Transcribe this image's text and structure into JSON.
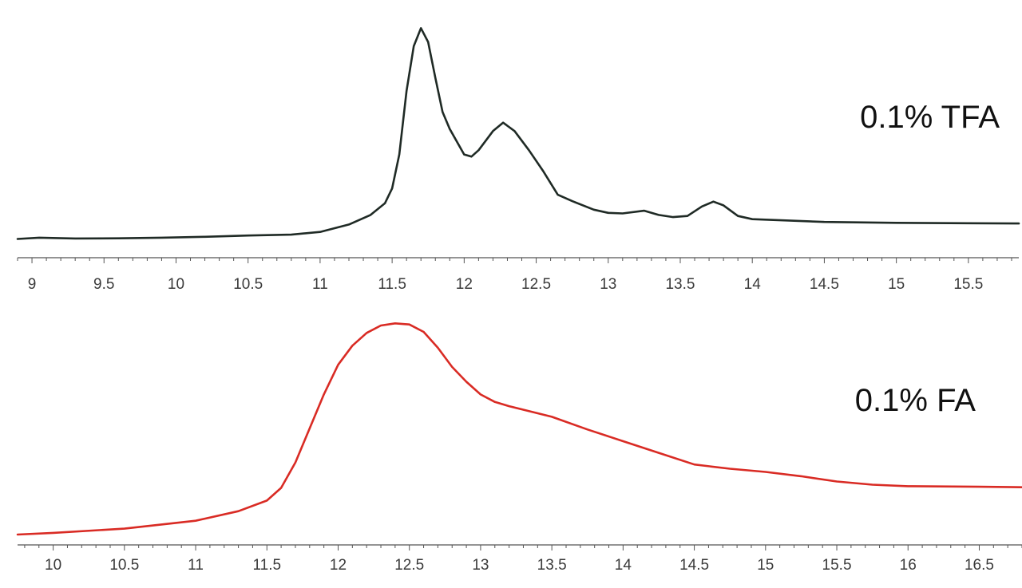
{
  "chart_data": [
    {
      "type": "line",
      "xlim": [
        8.9,
        15.85
      ],
      "ylim": [
        0,
        100
      ],
      "grid": false,
      "tick_labels": [
        "9",
        "9.5",
        "10",
        "10.5",
        "11",
        "11.5",
        "12",
        "12.5",
        "13",
        "13.5",
        "14",
        "14.5",
        "15",
        "15.5"
      ],
      "series": [
        {
          "name": "0.1% TFA",
          "color": "#1f2a25",
          "x": [
            8.9,
            9.05,
            9.3,
            9.6,
            9.9,
            10.2,
            10.5,
            10.8,
            11.0,
            11.2,
            11.35,
            11.45,
            11.5,
            11.55,
            11.6,
            11.65,
            11.7,
            11.75,
            11.8,
            11.85,
            11.9,
            12.0,
            12.05,
            12.1,
            12.2,
            12.27,
            12.35,
            12.45,
            12.55,
            12.65,
            12.75,
            12.9,
            13.0,
            13.1,
            13.25,
            13.35,
            13.45,
            13.55,
            13.65,
            13.73,
            13.8,
            13.9,
            14.0,
            14.2,
            14.5,
            15.0,
            15.5,
            15.85
          ],
          "y": [
            0.2,
            0.8,
            0.4,
            0.5,
            0.8,
            1.2,
            1.8,
            2.2,
            3.5,
            7.0,
            11.5,
            17.0,
            24.0,
            40.0,
            70.0,
            91.0,
            99.5,
            93.0,
            76.0,
            60.0,
            52.0,
            40.0,
            39.0,
            42.0,
            51.0,
            55.0,
            51.0,
            42.0,
            32.0,
            21.0,
            18.0,
            14.0,
            12.5,
            12.2,
            13.5,
            11.5,
            10.5,
            11.0,
            15.5,
            17.8,
            16.0,
            11.0,
            9.5,
            9.0,
            8.2,
            7.8,
            7.6,
            7.5
          ]
        }
      ]
    },
    {
      "type": "line",
      "xlim": [
        9.75,
        16.8
      ],
      "ylim": [
        0,
        100
      ],
      "grid": false,
      "tick_labels": [
        "10",
        "10.5",
        "11",
        "11.5",
        "12",
        "12.5",
        "13",
        "13.5",
        "14",
        "14.5",
        "15",
        "15.5",
        "16",
        "16.5"
      ],
      "series": [
        {
          "name": "0.1% FA",
          "color": "#d92b24",
          "x": [
            9.75,
            10.0,
            10.5,
            11.0,
            11.3,
            11.5,
            11.6,
            11.7,
            11.8,
            11.9,
            12.0,
            12.1,
            12.2,
            12.3,
            12.4,
            12.5,
            12.6,
            12.7,
            12.8,
            12.9,
            13.0,
            13.1,
            13.2,
            13.35,
            13.5,
            13.75,
            14.0,
            14.25,
            14.5,
            14.75,
            15.0,
            15.25,
            15.5,
            15.75,
            16.0,
            16.5,
            16.8
          ],
          "y": [
            0.0,
            0.8,
            2.8,
            6.5,
            11.0,
            16.0,
            22.0,
            34.0,
            50.0,
            66.0,
            80.0,
            89.0,
            95.0,
            98.5,
            99.5,
            99.0,
            95.5,
            88.0,
            79.0,
            72.0,
            66.0,
            62.5,
            60.5,
            58.0,
            55.5,
            49.5,
            44.0,
            38.5,
            33.0,
            31.0,
            29.5,
            27.5,
            25.0,
            23.5,
            22.8,
            22.5,
            22.3
          ]
        }
      ]
    }
  ]
}
